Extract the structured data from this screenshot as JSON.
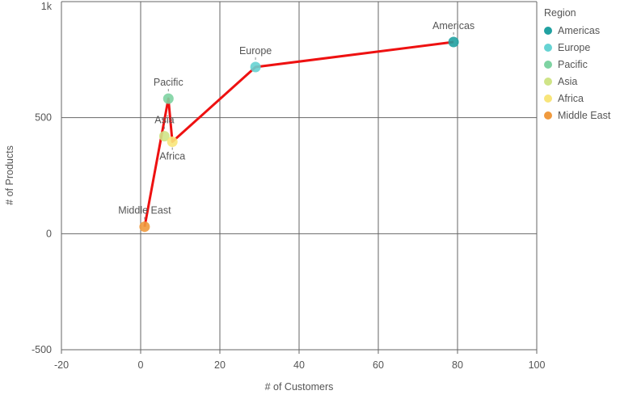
{
  "chart_data": {
    "type": "scatter",
    "xlabel": "# of Customers",
    "ylabel": "# of Products",
    "xlim": [
      -20,
      100
    ],
    "ylim": [
      -500,
      1000
    ],
    "x_ticks": [
      -20,
      0,
      20,
      40,
      60,
      80,
      100
    ],
    "y_ticks": [
      -500,
      0,
      500,
      1000
    ],
    "x_tick_labels": [
      "-20",
      "0",
      "20",
      "40",
      "60",
      "80",
      "100"
    ],
    "y_tick_labels": [
      "-500",
      "0",
      "500",
      "1k"
    ],
    "grid": true,
    "legend": {
      "title": "Region",
      "position": "right"
    },
    "series": [
      {
        "name": "Americas",
        "color": "#21a1a1",
        "x": 79,
        "y": 826
      },
      {
        "name": "Europe",
        "color": "#66d3d3",
        "x": 29,
        "y": 718
      },
      {
        "name": "Pacific",
        "color": "#7ed3a2",
        "x": 7,
        "y": 582
      },
      {
        "name": "Asia",
        "color": "#cfe487",
        "x": 6,
        "y": 420
      },
      {
        "name": "Africa",
        "color": "#f8e57a",
        "x": 8,
        "y": 396
      },
      {
        "name": "Middle East",
        "color": "#f09a3e",
        "x": 1,
        "y": 30
      }
    ],
    "connector_line": {
      "color": "#ee1111",
      "order": [
        "Middle East",
        "Pacific",
        "Africa",
        "Europe",
        "Americas"
      ]
    }
  }
}
